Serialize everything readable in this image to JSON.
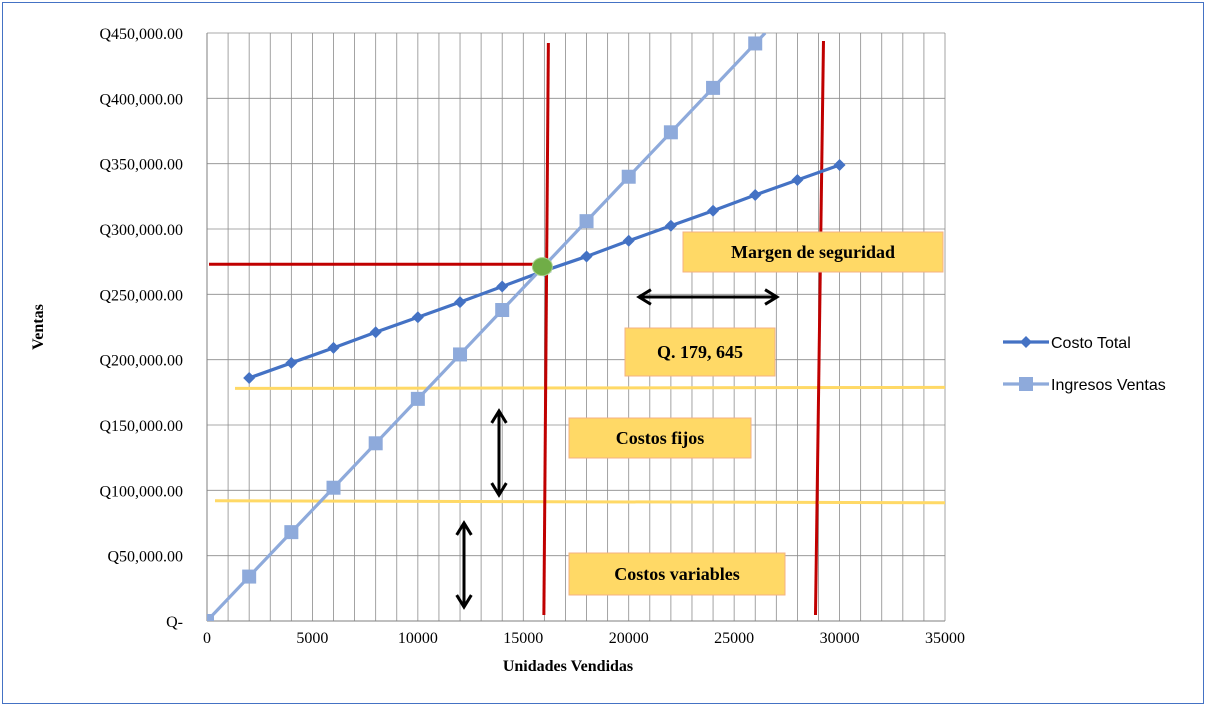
{
  "chart_data": {
    "type": "line",
    "title": "",
    "xlabel": "Unidades Vendidas",
    "ylabel": "Ventas",
    "xlim": [
      0,
      35000
    ],
    "ylim": [
      0,
      450000
    ],
    "x_ticks": [
      "0",
      "5000",
      "10000",
      "15000",
      "20000",
      "25000",
      "30000",
      "35000"
    ],
    "y_ticks": [
      "Q-",
      "Q50,000.00",
      "Q100,000.00",
      "Q150,000.00",
      "Q200,000.00",
      "Q250,000.00",
      "Q300,000.00",
      "Q350,000.00",
      "Q400,000.00",
      "Q450,000.00"
    ],
    "grid": true,
    "legend_position": "right",
    "series": [
      {
        "name": "Costo Total",
        "color": "#4472c4",
        "marker": "diamond",
        "x": [
          2000,
          4000,
          6000,
          8000,
          10000,
          12000,
          14000,
          16000,
          18000,
          20000,
          22000,
          24000,
          26000,
          28000,
          30000
        ],
        "values": [
          186000,
          197500,
          209000,
          221000,
          232500,
          244000,
          256000,
          268000,
          279000,
          291000,
          302500,
          314000,
          326000,
          337500,
          349000
        ]
      },
      {
        "name": "Ingresos Ventas",
        "color": "#8eaadb",
        "marker": "square",
        "x": [
          0,
          2000,
          4000,
          6000,
          8000,
          10000,
          12000,
          14000,
          16000,
          18000,
          20000,
          22000,
          24000,
          26000
        ],
        "values": [
          0,
          34000,
          68000,
          102000,
          136000,
          170000,
          204000,
          238000,
          272000,
          306000,
          340000,
          374000,
          408000,
          442000
        ]
      }
    ],
    "break_even": {
      "x": 16000,
      "y": 272000,
      "color": "#70ad47"
    },
    "reference_lines": {
      "break_even_vertical_x": 16000,
      "safety_vertical_x": 29000,
      "break_even_horizontal_y": 273000,
      "fixed_cost_top_y": 178000,
      "fixed_cost_bottom_y": 92000,
      "red_color": "#c00000",
      "yellow_color": "#ffd966"
    },
    "annotations": {
      "margin_label": "Margen de seguridad",
      "margin_value": "Q. 179, 645",
      "fixed_costs": "Costos fijos",
      "variable_costs": "Costos variables",
      "box_fill": "#ffd966",
      "box_stroke": "#f4b183"
    }
  }
}
